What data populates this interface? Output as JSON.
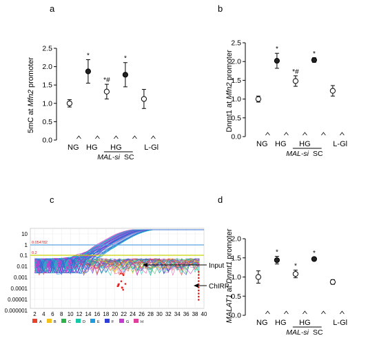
{
  "chart_data": [
    {
      "panel": "a",
      "type": "scatter",
      "ylabel_pre": "5mC at ",
      "ylabel_ital": "Mfn2",
      "ylabel_post": " promoter",
      "ylim": [
        0,
        2.5
      ],
      "yticks": [
        "0.0",
        "0.5",
        "1.0",
        "1.5",
        "2.0",
        "2.5"
      ],
      "groups": [
        "NG",
        "HG",
        "HG",
        "L-Gl"
      ],
      "sublabels": [
        "MAL-si",
        "SC"
      ],
      "points": [
        {
          "x": 1.0,
          "y": 1.0,
          "err": 0.1,
          "filled": false,
          "ann": ""
        },
        {
          "x": 2.0,
          "y": 1.87,
          "err": 0.32,
          "filled": true,
          "ann": "*"
        },
        {
          "x": 3.0,
          "y": 1.32,
          "err": 0.2,
          "filled": false,
          "ann": "*#"
        },
        {
          "x": 4.0,
          "y": 1.78,
          "err": 0.33,
          "filled": true,
          "ann": "*"
        },
        {
          "x": 5.0,
          "y": 1.12,
          "err": 0.26,
          "filled": false,
          "ann": ""
        }
      ],
      "zero_marks": [
        1.5,
        2.5,
        3.5,
        4.5,
        5.5
      ]
    },
    {
      "panel": "b",
      "type": "scatter",
      "ylabel_pre": "Dnmt1 at ",
      "ylabel_ital": "Mfn2",
      "ylabel_post": " promoter",
      "ylim": [
        0,
        2.5
      ],
      "yticks": [
        "0.0",
        "0.5",
        "1.0",
        "1.5",
        "2.0",
        "2.5"
      ],
      "groups": [
        "NG",
        "HG",
        "HG",
        "L-Gl"
      ],
      "sublabels": [
        "MAL-si",
        "SC"
      ],
      "points": [
        {
          "x": 1.0,
          "y": 1.0,
          "err": 0.08,
          "filled": false,
          "ann": ""
        },
        {
          "x": 2.0,
          "y": 2.02,
          "err": 0.2,
          "filled": true,
          "ann": "*"
        },
        {
          "x": 3.0,
          "y": 1.48,
          "err": 0.14,
          "filled": false,
          "ann": "*#"
        },
        {
          "x": 4.0,
          "y": 2.04,
          "err": 0.06,
          "filled": true,
          "ann": "*"
        },
        {
          "x": 5.0,
          "y": 1.22,
          "err": 0.14,
          "filled": false,
          "ann": ""
        }
      ],
      "zero_marks": [
        1.5,
        2.5,
        3.5,
        4.5,
        5.5
      ]
    },
    {
      "panel": "c",
      "type": "line",
      "yticks": [
        "10",
        "1",
        "0.1",
        "0.01",
        "0.001",
        "0.0001",
        "0.00001",
        "0.000001"
      ],
      "xticks": [
        "2",
        "4",
        "6",
        "8",
        "10",
        "12",
        "14",
        "16",
        "18",
        "20",
        "22",
        "24",
        "26",
        "28",
        "30",
        "32",
        "34",
        "36",
        "38",
        "40"
      ],
      "xlim": [
        1,
        40
      ],
      "threshold_labels": [
        "0.054782",
        "0.2"
      ],
      "legend": [
        "A",
        "B",
        "C",
        "D",
        "E",
        "F",
        "G",
        "H"
      ],
      "legend_colors": [
        "#e8412c",
        "#f2c21b",
        "#2db34a",
        "#14c8a8",
        "#1e9be0",
        "#2f3fd6",
        "#c33ccf",
        "#e0409a"
      ],
      "annotations": [
        "Input",
        "ChIRP"
      ]
    },
    {
      "panel": "d",
      "type": "scatter",
      "ylabel_ital": "MALAT1",
      "ylabel_mid": " at ",
      "ylabel_ital2": "Dnmt1",
      "ylabel_post": " promoter",
      "ylim": [
        0,
        2.0
      ],
      "yticks": [
        "0.0",
        "0.5",
        "1.0",
        "1.5",
        "2.0"
      ],
      "groups": [
        "NG",
        "HG",
        "HG",
        "L-Gl"
      ],
      "sublabels": [
        "MAL-si",
        "SC"
      ],
      "points": [
        {
          "x": 1.0,
          "y": 1.0,
          "err": 0.16,
          "filled": false,
          "ann": ""
        },
        {
          "x": 2.0,
          "y": 1.44,
          "err": 0.1,
          "filled": true,
          "ann": "*"
        },
        {
          "x": 3.0,
          "y": 1.08,
          "err": 0.1,
          "filled": false,
          "ann": "*"
        },
        {
          "x": 4.0,
          "y": 1.47,
          "err": 0.04,
          "filled": true,
          "ann": "*"
        },
        {
          "x": 5.0,
          "y": 0.87,
          "err": 0.06,
          "filled": false,
          "ann": ""
        }
      ],
      "zero_marks": [
        1.5,
        2.5,
        3.5,
        4.5,
        5.5
      ]
    }
  ]
}
